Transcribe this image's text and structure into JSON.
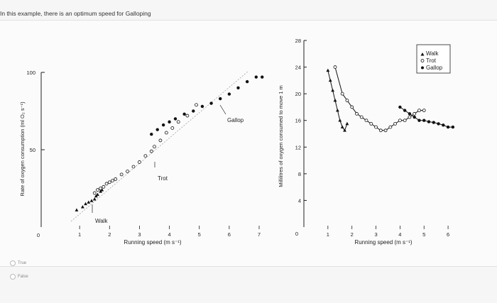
{
  "question": {
    "text": "In this example, there is an optimum speed for Galloping"
  },
  "options": [
    {
      "label": "True"
    },
    {
      "label": "False"
    }
  ],
  "chart_data": [
    {
      "type": "scatter",
      "title": "",
      "xlabel": "Running speed (m s⁻¹)",
      "ylabel": "Rate of oxygen consumption (ml O₂ s⁻¹)",
      "xlim": [
        0,
        7
      ],
      "ylim": [
        0,
        100
      ],
      "x_ticks": [
        "1",
        "2",
        "3",
        "4",
        "5",
        "6",
        "7"
      ],
      "y_ticks": [
        "0",
        "50",
        "100"
      ],
      "annotations": [
        "Walk",
        "Trot",
        "Gallop"
      ],
      "series": [
        {
          "name": "Walk",
          "marker": "triangle",
          "points": [
            [
              0.9,
              11
            ],
            [
              1.1,
              13
            ],
            [
              1.2,
              15
            ],
            [
              1.3,
              16
            ],
            [
              1.4,
              17
            ],
            [
              1.5,
              18
            ],
            [
              1.55,
              20
            ],
            [
              1.6,
              21
            ],
            [
              1.7,
              23
            ],
            [
              1.75,
              24
            ]
          ]
        },
        {
          "name": "Trot",
          "marker": "open-circle",
          "points": [
            [
              1.5,
              22
            ],
            [
              1.6,
              24
            ],
            [
              1.7,
              25
            ],
            [
              1.8,
              26
            ],
            [
              1.9,
              28
            ],
            [
              2.0,
              29
            ],
            [
              2.1,
              30
            ],
            [
              2.2,
              31
            ],
            [
              2.4,
              34
            ],
            [
              2.6,
              36
            ],
            [
              2.8,
              39
            ],
            [
              3.0,
              42
            ],
            [
              3.2,
              46
            ],
            [
              3.4,
              49
            ],
            [
              3.5,
              52
            ],
            [
              3.7,
              56
            ],
            [
              3.9,
              61
            ],
            [
              4.1,
              64
            ],
            [
              4.3,
              68
            ],
            [
              4.6,
              72
            ],
            [
              4.9,
              79
            ]
          ]
        },
        {
          "name": "Gallop",
          "marker": "filled-circle",
          "points": [
            [
              3.4,
              60
            ],
            [
              3.6,
              63
            ],
            [
              3.8,
              66
            ],
            [
              4.0,
              68
            ],
            [
              4.2,
              70
            ],
            [
              4.5,
              73
            ],
            [
              4.8,
              75
            ],
            [
              5.1,
              78
            ],
            [
              5.4,
              80
            ],
            [
              5.7,
              83
            ],
            [
              6.0,
              86
            ],
            [
              6.3,
              90
            ],
            [
              6.6,
              94
            ],
            [
              6.9,
              97
            ],
            [
              7.1,
              97
            ]
          ]
        }
      ]
    },
    {
      "type": "scatter",
      "title": "",
      "xlabel": "Running speed (m s⁻¹)",
      "ylabel": "Millilitres of oxygen consumed to move 1 m",
      "xlim": [
        0,
        6.5
      ],
      "ylim": [
        0,
        28
      ],
      "x_ticks": [
        "1",
        "2",
        "3",
        "4",
        "5",
        "6"
      ],
      "y_ticks": [
        "0",
        "4",
        "8",
        "12",
        "16",
        "20",
        "24",
        "28"
      ],
      "legend": {
        "position": "top-right",
        "entries": [
          "Walk",
          "Trot",
          "Gallop"
        ]
      },
      "series": [
        {
          "name": "Walk",
          "marker": "triangle",
          "points": [
            [
              1.0,
              23.5
            ],
            [
              1.1,
              22
            ],
            [
              1.2,
              20.5
            ],
            [
              1.3,
              19
            ],
            [
              1.4,
              17.5
            ],
            [
              1.5,
              16
            ],
            [
              1.6,
              15
            ],
            [
              1.7,
              14.5
            ],
            [
              1.8,
              15.5
            ]
          ]
        },
        {
          "name": "Trot",
          "marker": "open-circle",
          "points": [
            [
              1.3,
              24
            ],
            [
              1.6,
              20
            ],
            [
              1.8,
              19
            ],
            [
              2.0,
              18
            ],
            [
              2.2,
              17
            ],
            [
              2.4,
              16.5
            ],
            [
              2.6,
              16
            ],
            [
              2.8,
              15.5
            ],
            [
              3.0,
              15
            ],
            [
              3.2,
              14.5
            ],
            [
              3.4,
              14.5
            ],
            [
              3.6,
              15
            ],
            [
              3.8,
              15.5
            ],
            [
              4.0,
              16
            ],
            [
              4.2,
              16
            ],
            [
              4.4,
              16.5
            ],
            [
              4.6,
              17
            ],
            [
              4.8,
              17.5
            ],
            [
              5.0,
              17.5
            ]
          ]
        },
        {
          "name": "Gallop",
          "marker": "filled-circle",
          "points": [
            [
              4.0,
              18
            ],
            [
              4.2,
              17.5
            ],
            [
              4.4,
              17
            ],
            [
              4.6,
              16.5
            ],
            [
              4.8,
              16
            ],
            [
              5.0,
              16
            ],
            [
              5.2,
              15.8
            ],
            [
              5.4,
              15.7
            ],
            [
              5.6,
              15.5
            ],
            [
              5.8,
              15.3
            ],
            [
              6.0,
              15
            ],
            [
              6.2,
              15
            ]
          ]
        }
      ]
    }
  ]
}
